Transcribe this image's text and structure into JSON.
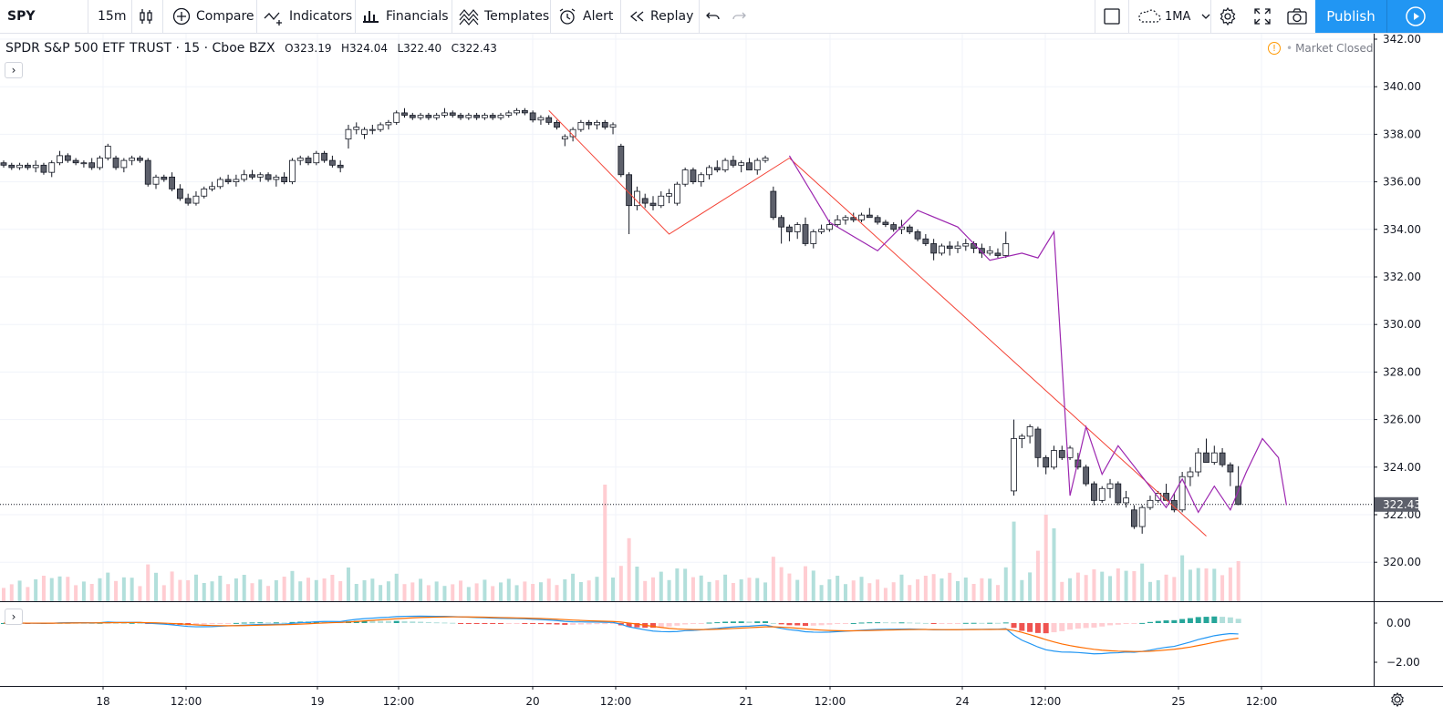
{
  "toolbar": {
    "symbol": "SPY",
    "interval": "15m",
    "compare_label": "Compare",
    "indicators_label": "Indicators",
    "financials_label": "Financials",
    "templates_label": "Templates",
    "alert_label": "Alert",
    "replay_label": "Replay",
    "layout_label": "1MA",
    "publish_label": "Publish"
  },
  "legend": {
    "title": "SPDR S&P 500 ETF TRUST · 15 · Cboe BZX",
    "open": "O323.19",
    "high": "H324.04",
    "low": "L322.40",
    "close": "C322.43"
  },
  "status": {
    "market": "Market Closed"
  },
  "colors": {
    "up": "#ffffff",
    "down": "#5d606b",
    "wick": "#131722",
    "accent": "#2196f3",
    "vol_up": "#b2dfdb",
    "vol_down": "#ffcdd2",
    "red_line": "#f44336",
    "zigzag": "#9c27b0",
    "macd": "#2196f3",
    "signal": "#ff6d00"
  },
  "chart_data": {
    "type": "candlestick",
    "price_axis": {
      "ticks": [
        342,
        340,
        338,
        336,
        334,
        332,
        330,
        328,
        326,
        324,
        322,
        320
      ],
      "tick_labels": [
        "342.00",
        "340.00",
        "338.00",
        "336.00",
        "334.00",
        "332.00",
        "330.00",
        "328.00",
        "326.00",
        "324.00",
        "322.00",
        "320.00"
      ],
      "last_price": 322.43,
      "last_price_label": "322.43"
    },
    "macd_axis": {
      "ticks": [
        0,
        -2
      ],
      "tick_labels": [
        "0.00",
        "−2.00"
      ]
    },
    "time_axis": {
      "labels": [
        "18",
        "12:00",
        "19",
        "12:00",
        "20",
        "12:00",
        "21",
        "12:00",
        "24",
        "12:00",
        "25",
        "12:00"
      ]
    },
    "candles": [
      [
        336.8,
        336.9,
        336.6,
        336.7
      ],
      [
        336.7,
        336.8,
        336.5,
        336.6
      ],
      [
        336.6,
        336.8,
        336.5,
        336.7
      ],
      [
        336.7,
        336.8,
        336.5,
        336.6
      ],
      [
        336.6,
        336.9,
        336.4,
        336.7
      ],
      [
        336.7,
        336.8,
        336.3,
        336.4
      ],
      [
        336.4,
        336.9,
        336.2,
        336.8
      ],
      [
        336.8,
        337.3,
        336.7,
        337.1
      ],
      [
        337.1,
        337.2,
        336.8,
        336.9
      ],
      [
        336.9,
        337.0,
        336.7,
        336.8
      ],
      [
        336.8,
        336.9,
        336.6,
        336.8
      ],
      [
        336.8,
        337.0,
        336.5,
        336.6
      ],
      [
        336.6,
        337.1,
        336.5,
        337.0
      ],
      [
        337.0,
        337.6,
        336.9,
        337.5
      ],
      [
        337.0,
        337.1,
        336.5,
        336.6
      ],
      [
        336.6,
        337.0,
        336.4,
        336.9
      ],
      [
        336.9,
        337.1,
        336.7,
        337.0
      ],
      [
        337.0,
        337.1,
        336.8,
        336.9
      ],
      [
        336.9,
        337.0,
        335.8,
        335.9
      ],
      [
        335.9,
        336.3,
        335.7,
        336.2
      ],
      [
        336.2,
        336.3,
        336.0,
        336.1
      ],
      [
        336.2,
        336.4,
        335.6,
        335.7
      ],
      [
        335.7,
        335.9,
        335.2,
        335.3
      ],
      [
        335.3,
        335.5,
        335.0,
        335.1
      ],
      [
        335.1,
        335.6,
        335.0,
        335.4
      ],
      [
        335.4,
        335.8,
        335.3,
        335.7
      ],
      [
        335.7,
        336.0,
        335.6,
        335.8
      ],
      [
        335.8,
        336.2,
        335.7,
        336.1
      ],
      [
        336.1,
        336.3,
        335.9,
        336.0
      ],
      [
        336.0,
        336.3,
        335.8,
        336.1
      ],
      [
        336.1,
        336.5,
        336.0,
        336.3
      ],
      [
        336.3,
        336.5,
        336.1,
        336.2
      ],
      [
        336.2,
        336.4,
        336.0,
        336.3
      ],
      [
        336.3,
        336.4,
        336.0,
        336.1
      ],
      [
        336.1,
        336.3,
        335.8,
        336.2
      ],
      [
        336.2,
        336.4,
        335.9,
        336.0
      ],
      [
        336.0,
        337.0,
        335.9,
        336.9
      ],
      [
        336.9,
        337.1,
        336.7,
        337.0
      ],
      [
        337.0,
        337.1,
        336.7,
        336.8
      ],
      [
        336.8,
        337.3,
        336.7,
        337.2
      ],
      [
        337.2,
        337.3,
        336.8,
        336.9
      ],
      [
        336.9,
        337.1,
        336.6,
        336.7
      ],
      [
        336.7,
        336.9,
        336.4,
        336.6
      ],
      [
        337.8,
        338.4,
        337.4,
        338.2
      ],
      [
        338.2,
        338.5,
        338.0,
        338.3
      ],
      [
        338.0,
        338.3,
        337.8,
        338.2
      ],
      [
        338.2,
        338.4,
        338.0,
        338.2
      ],
      [
        338.2,
        338.5,
        338.1,
        338.4
      ],
      [
        338.4,
        338.6,
        338.2,
        338.5
      ],
      [
        338.5,
        339.0,
        338.4,
        338.9
      ],
      [
        338.9,
        339.1,
        338.7,
        338.8
      ],
      [
        338.8,
        338.9,
        338.6,
        338.7
      ],
      [
        338.7,
        338.9,
        338.6,
        338.8
      ],
      [
        338.8,
        338.9,
        338.6,
        338.7
      ],
      [
        338.7,
        338.9,
        338.6,
        338.8
      ],
      [
        338.8,
        339.1,
        338.7,
        338.9
      ],
      [
        338.9,
        339.0,
        338.7,
        338.8
      ],
      [
        338.8,
        338.9,
        338.6,
        338.7
      ],
      [
        338.7,
        338.9,
        338.6,
        338.8
      ],
      [
        338.8,
        338.9,
        338.6,
        338.7
      ],
      [
        338.7,
        338.9,
        338.6,
        338.8
      ],
      [
        338.8,
        338.9,
        338.6,
        338.7
      ],
      [
        338.7,
        338.9,
        338.6,
        338.8
      ],
      [
        338.8,
        339.0,
        338.7,
        338.9
      ],
      [
        338.9,
        339.1,
        338.8,
        339.0
      ],
      [
        339.0,
        339.1,
        338.8,
        338.9
      ],
      [
        338.9,
        339.0,
        338.5,
        338.6
      ],
      [
        338.6,
        338.8,
        338.4,
        338.7
      ],
      [
        338.7,
        338.8,
        338.4,
        338.5
      ],
      [
        338.5,
        338.6,
        338.2,
        338.3
      ],
      [
        337.8,
        338.0,
        337.5,
        337.9
      ],
      [
        337.9,
        338.3,
        337.7,
        338.2
      ],
      [
        338.2,
        338.6,
        338.1,
        338.5
      ],
      [
        338.5,
        338.6,
        338.2,
        338.4
      ],
      [
        338.4,
        338.6,
        338.2,
        338.5
      ],
      [
        338.5,
        338.6,
        338.2,
        338.3
      ],
      [
        338.3,
        338.5,
        338.0,
        338.4
      ],
      [
        337.5,
        337.6,
        336.2,
        336.3
      ],
      [
        336.3,
        336.4,
        333.8,
        335.0
      ],
      [
        335.0,
        335.8,
        334.8,
        335.6
      ],
      [
        335.3,
        335.5,
        334.9,
        335.1
      ],
      [
        335.1,
        335.4,
        334.8,
        335.0
      ],
      [
        335.0,
        335.6,
        334.9,
        335.4
      ],
      [
        335.4,
        335.7,
        335.1,
        335.5
      ],
      [
        335.1,
        336.0,
        335.0,
        335.9
      ],
      [
        335.9,
        336.6,
        335.8,
        336.5
      ],
      [
        336.5,
        336.6,
        335.9,
        336.0
      ],
      [
        336.0,
        336.4,
        335.8,
        336.3
      ],
      [
        336.3,
        336.7,
        336.1,
        336.6
      ],
      [
        336.6,
        336.9,
        336.4,
        336.5
      ],
      [
        336.5,
        337.0,
        336.4,
        336.9
      ],
      [
        336.9,
        337.1,
        336.6,
        336.7
      ],
      [
        336.7,
        336.9,
        336.4,
        336.8
      ],
      [
        336.8,
        337.0,
        336.6,
        336.5
      ],
      [
        336.5,
        337.0,
        336.3,
        336.9
      ],
      [
        336.9,
        337.1,
        336.8,
        337.0
      ],
      [
        335.6,
        335.8,
        334.4,
        334.5
      ],
      [
        334.5,
        334.6,
        333.4,
        334.1
      ],
      [
        334.1,
        334.2,
        333.5,
        333.9
      ],
      [
        333.9,
        334.3,
        333.6,
        334.2
      ],
      [
        334.2,
        334.5,
        333.3,
        333.4
      ],
      [
        333.4,
        334.0,
        333.2,
        333.9
      ],
      [
        333.9,
        334.2,
        333.8,
        334.0
      ],
      [
        334.0,
        334.4,
        333.9,
        334.2
      ],
      [
        334.2,
        334.6,
        334.1,
        334.4
      ],
      [
        334.4,
        334.6,
        334.2,
        334.5
      ],
      [
        334.5,
        334.7,
        334.3,
        334.4
      ],
      [
        334.4,
        334.7,
        334.3,
        334.6
      ],
      [
        334.6,
        334.9,
        334.5,
        334.5
      ],
      [
        334.5,
        334.6,
        334.2,
        334.3
      ],
      [
        334.3,
        334.4,
        334.1,
        334.2
      ],
      [
        334.2,
        334.3,
        333.9,
        334.0
      ],
      [
        334.0,
        334.4,
        333.8,
        334.1
      ],
      [
        334.1,
        334.2,
        333.8,
        333.9
      ],
      [
        333.9,
        334.0,
        333.5,
        333.6
      ],
      [
        333.6,
        333.8,
        333.3,
        333.4
      ],
      [
        333.4,
        333.6,
        332.7,
        333.0
      ],
      [
        333.0,
        333.4,
        332.9,
        333.3
      ],
      [
        333.3,
        333.5,
        332.9,
        333.2
      ],
      [
        333.2,
        333.5,
        333.0,
        333.3
      ],
      [
        333.3,
        333.6,
        333.1,
        333.4
      ],
      [
        333.4,
        333.5,
        333.0,
        333.2
      ],
      [
        333.2,
        333.4,
        332.8,
        333.0
      ],
      [
        333.0,
        333.3,
        332.9,
        333.1
      ],
      [
        333.0,
        333.2,
        332.8,
        332.9
      ],
      [
        332.9,
        333.9,
        332.8,
        333.4
      ],
      [
        323.0,
        326.0,
        322.8,
        325.2
      ],
      [
        325.2,
        325.4,
        324.8,
        325.3
      ],
      [
        325.3,
        325.8,
        325.0,
        325.7
      ],
      [
        325.6,
        325.7,
        324.0,
        324.4
      ],
      [
        324.4,
        324.5,
        323.7,
        324.0
      ],
      [
        324.0,
        324.9,
        323.9,
        324.7
      ],
      [
        324.7,
        324.9,
        324.3,
        324.4
      ],
      [
        324.4,
        324.9,
        324.3,
        324.8
      ],
      [
        324.3,
        324.6,
        323.9,
        324.0
      ],
      [
        324.0,
        324.1,
        323.2,
        323.3
      ],
      [
        323.3,
        323.4,
        322.4,
        322.6
      ],
      [
        322.6,
        323.2,
        322.5,
        323.1
      ],
      [
        323.1,
        323.5,
        322.7,
        323.3
      ],
      [
        323.3,
        323.4,
        322.4,
        322.5
      ],
      [
        322.5,
        323.0,
        322.3,
        322.7
      ],
      [
        322.2,
        322.4,
        321.4,
        321.5
      ],
      [
        321.5,
        322.4,
        321.2,
        322.3
      ],
      [
        322.3,
        322.8,
        322.2,
        322.6
      ],
      [
        322.6,
        323.0,
        322.5,
        322.9
      ],
      [
        322.9,
        323.3,
        322.7,
        322.6
      ],
      [
        322.6,
        322.9,
        322.1,
        322.2
      ],
      [
        322.2,
        323.8,
        322.1,
        323.6
      ],
      [
        323.6,
        324.0,
        323.2,
        323.8
      ],
      [
        323.8,
        324.8,
        323.6,
        324.6
      ],
      [
        324.6,
        325.2,
        324.2,
        324.2
      ],
      [
        324.2,
        324.9,
        324.1,
        324.6
      ],
      [
        324.6,
        324.8,
        324.0,
        324.1
      ],
      [
        324.1,
        324.2,
        323.2,
        323.8
      ],
      [
        323.19,
        324.04,
        322.4,
        322.43
      ]
    ],
    "red_lines": [
      [
        [
          68,
          339.0
        ],
        [
          83,
          333.8
        ],
        [
          98,
          337.0
        ]
      ],
      [
        [
          98,
          337.0
        ],
        [
          150,
          321.1
        ]
      ]
    ],
    "zigzag": [
      [
        98,
        337.1
      ],
      [
        103,
        334.3
      ],
      [
        109,
        333.1
      ],
      [
        114,
        334.8
      ],
      [
        119,
        334.1
      ],
      [
        123,
        332.7
      ],
      [
        127,
        333.0
      ],
      [
        129,
        332.8
      ],
      [
        131,
        333.9
      ],
      [
        133,
        322.8
      ],
      [
        135,
        325.7
      ],
      [
        137,
        323.7
      ],
      [
        139,
        324.9
      ],
      [
        145,
        322.3
      ],
      [
        147,
        323.5
      ],
      [
        149,
        322.1
      ],
      [
        151,
        323.2
      ],
      [
        153,
        322.2
      ],
      [
        155,
        323.8
      ],
      [
        157,
        325.2
      ],
      [
        159,
        324.4
      ],
      [
        160,
        322.4
      ]
    ]
  }
}
